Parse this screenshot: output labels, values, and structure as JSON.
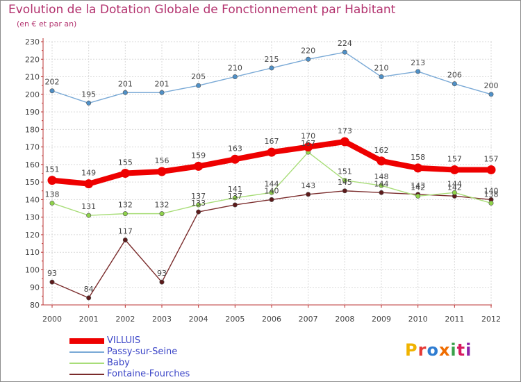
{
  "title": "Evolution de la Dotation Globale de Fonctionnement par Habitant",
  "subtitle": "(en € et par an)",
  "logo_text": "Proxiti",
  "chart_data": {
    "type": "line",
    "title": "Evolution de la Dotation Globale de Fonctionnement par Habitant",
    "subtitle": "(en € et par an)",
    "xlabel": "",
    "ylabel": "",
    "ylim": [
      80,
      230
    ],
    "yticks": [
      80,
      90,
      100,
      110,
      120,
      130,
      140,
      150,
      160,
      170,
      180,
      190,
      200,
      210,
      220,
      230
    ],
    "grid": true,
    "x": [
      "2000",
      "2001",
      "2002",
      "2003",
      "2004",
      "2005",
      "2006",
      "2007",
      "2008",
      "2009",
      "2010",
      "2011",
      "2012"
    ],
    "series": [
      {
        "name": "Passy-sur-Seine",
        "color": "#4f90c7",
        "line_color": "#79a9d6",
        "style": "thin",
        "values": [
          202,
          195,
          201,
          201,
          205,
          210,
          215,
          220,
          224,
          210,
          213,
          206,
          200
        ]
      },
      {
        "name": "Fontaine-Fourches",
        "color": "#5c1a1a",
        "line_color": "#7a2b2b",
        "style": "thin",
        "values": [
          93,
          84,
          117,
          93,
          133,
          137,
          140,
          143,
          145,
          144,
          143,
          142,
          140
        ]
      },
      {
        "name": "Baby",
        "color": "#8fd34a",
        "line_color": "#a8dd78",
        "style": "thin",
        "values": [
          138,
          131,
          132,
          132,
          137,
          141,
          144,
          167,
          151,
          148,
          142,
          144,
          138
        ]
      },
      {
        "name": "VILLUIS",
        "color": "#ee0000",
        "line_color": "#ee0000",
        "style": "thick",
        "values": [
          151,
          149,
          155,
          156,
          159,
          163,
          167,
          170,
          173,
          162,
          158,
          157,
          157
        ]
      }
    ],
    "legend": [
      "VILLUIS",
      "Passy-sur-Seine",
      "Baby",
      "Fontaine-Fourches"
    ],
    "legend_position": "bottom-left"
  }
}
